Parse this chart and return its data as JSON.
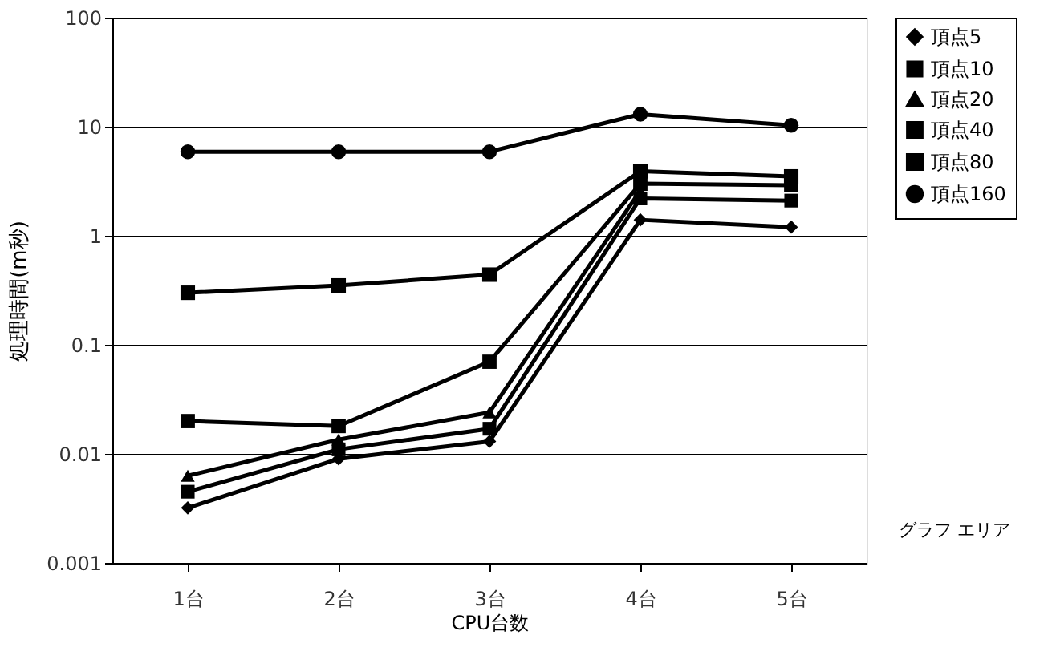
{
  "chart_data": {
    "type": "line",
    "xlabel": "CPU台数",
    "ylabel": "処理時間(m秒)",
    "categories": [
      "1台",
      "2台",
      "3台",
      "4台",
      "5台"
    ],
    "log": "y",
    "ylim": [
      0.001,
      100
    ],
    "yticks": [
      0.001,
      0.01,
      0.1,
      1,
      10,
      100
    ],
    "grid": "y",
    "legend": "right",
    "series": [
      {
        "name": "頂点5",
        "color": "#000000",
        "marker": "diamond",
        "values": [
          0.0032,
          0.009,
          0.013,
          1.4,
          1.2
        ]
      },
      {
        "name": "頂点10",
        "color": "#000000",
        "marker": "square",
        "values": [
          0.0045,
          0.011,
          0.017,
          2.2,
          2.1
        ]
      },
      {
        "name": "頂点20",
        "color": "#000000",
        "marker": "triangle",
        "values": [
          0.0063,
          0.0135,
          0.024,
          2.6,
          null
        ]
      },
      {
        "name": "頂点40",
        "color": "#000000",
        "marker": "square",
        "values": [
          0.02,
          0.018,
          0.07,
          3.0,
          2.9
        ]
      },
      {
        "name": "頂点80",
        "color": "#000000",
        "marker": "square",
        "values": [
          0.3,
          0.35,
          0.44,
          3.9,
          3.5
        ]
      },
      {
        "name": "頂点160",
        "color": "#000000",
        "marker": "circle",
        "values": [
          5.9,
          5.9,
          5.9,
          13,
          10.3
        ]
      }
    ],
    "annotations": [
      "グラフ エリア"
    ]
  }
}
